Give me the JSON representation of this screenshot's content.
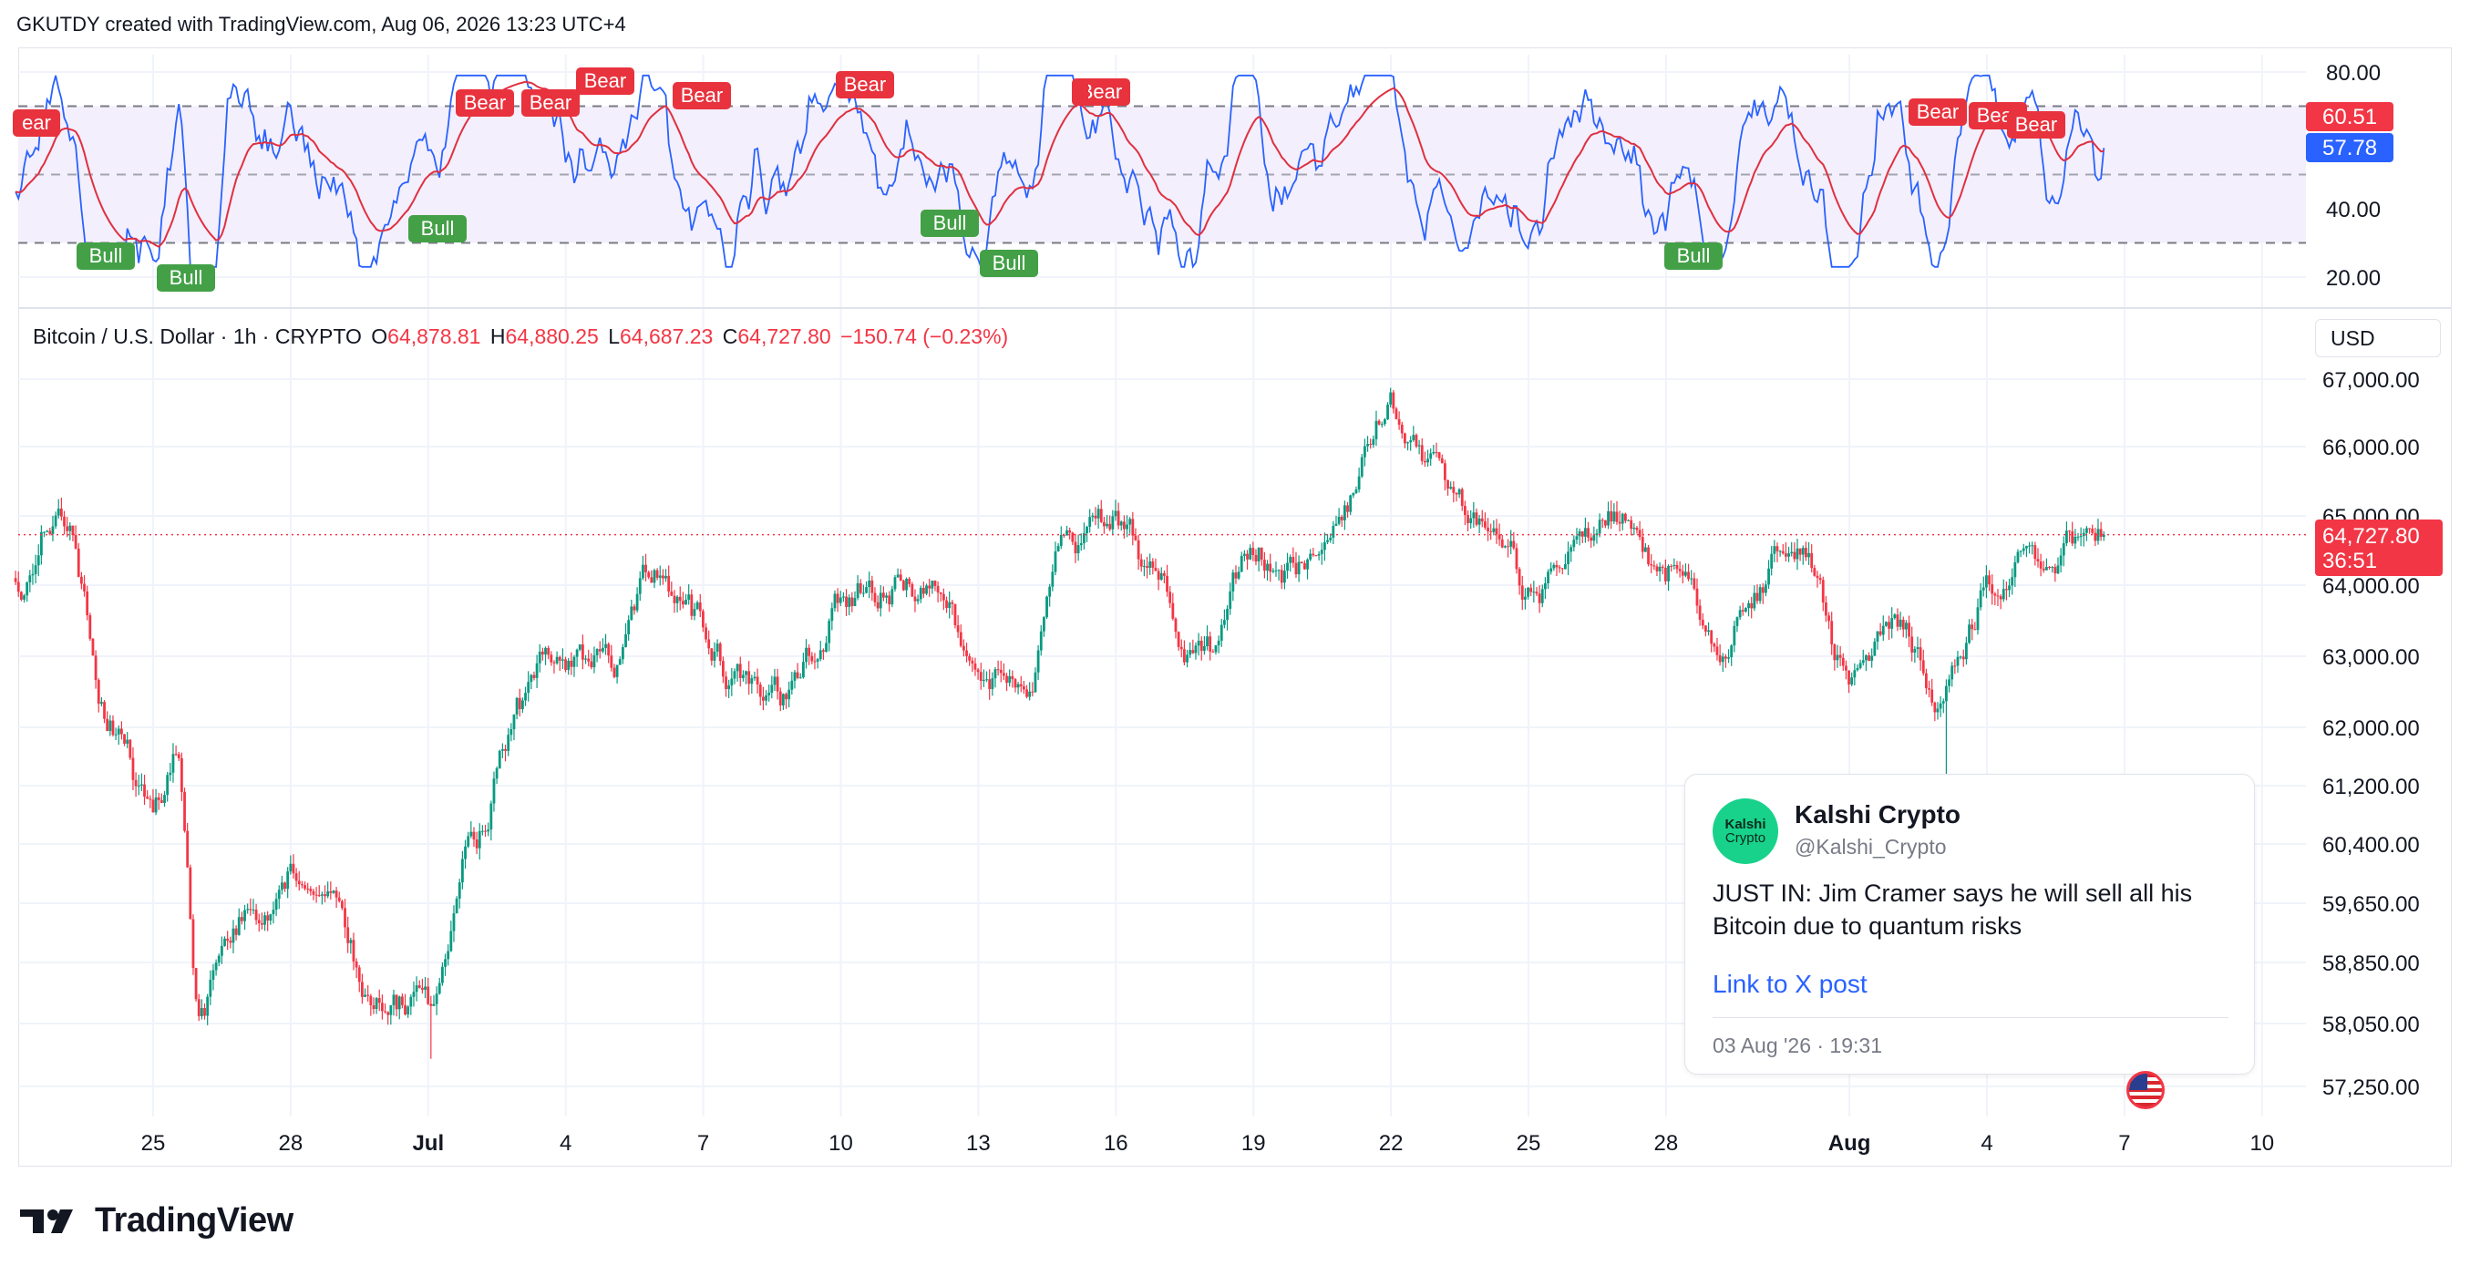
{
  "header": {
    "title": "GKUTDY created with TradingView.com, Aug 06, 2026 13:23 UTC+4"
  },
  "symbol": {
    "name": "Bitcoin / U.S. Dollar · 1h · CRYPTO",
    "o_label": "O",
    "o_value": "64,878.81",
    "h_label": "H",
    "h_value": "64,880.25",
    "l_label": "L",
    "l_value": "64,687.23",
    "c_label": "C",
    "c_value": "64,727.80",
    "change": "−150.74 (−0.23%)"
  },
  "currency_button": {
    "label": "USD"
  },
  "price_axis": {
    "ticks": [
      "67,000.00",
      "66,000.00",
      "65,000.00",
      "64,000.00",
      "63,000.00",
      "62,000.00",
      "61,200.00",
      "60,400.00",
      "59,650.00",
      "58,850.00",
      "58,050.00",
      "57,250.00"
    ],
    "last_price": "64,727.80",
    "countdown": "36:51"
  },
  "time_axis": {
    "labels": [
      {
        "text": "25",
        "bold": false
      },
      {
        "text": "28",
        "bold": false
      },
      {
        "text": "Jul",
        "bold": true
      },
      {
        "text": "4",
        "bold": false
      },
      {
        "text": "7",
        "bold": false
      },
      {
        "text": "10",
        "bold": false
      },
      {
        "text": "13",
        "bold": false
      },
      {
        "text": "16",
        "bold": false
      },
      {
        "text": "19",
        "bold": false
      },
      {
        "text": "22",
        "bold": false
      },
      {
        "text": "25",
        "bold": false
      },
      {
        "text": "28",
        "bold": false
      },
      {
        "text": "Aug",
        "bold": true
      },
      {
        "text": "4",
        "bold": false
      },
      {
        "text": "7",
        "bold": false
      },
      {
        "text": "10",
        "bold": false
      }
    ]
  },
  "rsi_panel": {
    "ticks": [
      "80.00",
      "40.00",
      "20.00"
    ],
    "rsi_value": "60.51",
    "ma_value": "57.78",
    "upper_band": 70,
    "mid_band": 50,
    "lower_band": 30,
    "bear_labels": [
      "Bear",
      "Bear",
      "Bear",
      "Bear",
      "Bear",
      "Bear",
      "Bear",
      "Bear",
      "Bear",
      "Bear"
    ],
    "bear_edge_label": "ear",
    "bull_labels": [
      "Bull",
      "Bull",
      "Bull",
      "Bull",
      "Bull",
      "Bull"
    ]
  },
  "chart_data": {
    "type": "candlestick",
    "series": [
      {
        "name": "Bitcoin / U.S. Dollar",
        "interval": "1h"
      },
      {
        "name": "RSI"
      }
    ],
    "x_range": [
      "Jun 22",
      "Aug 11"
    ],
    "y_range": [
      57000,
      67300
    ],
    "y_scale": "log",
    "rsi_range": [
      15,
      85
    ],
    "rsi_bands": [
      30,
      50,
      70
    ],
    "keypoints": [
      {
        "x": "Jun 22",
        "close": 64100
      },
      {
        "x": "Jun 23",
        "close": 65300
      },
      {
        "x": "Jun 24",
        "close": 62300
      },
      {
        "x": "Jun 25",
        "close": 60800
      },
      {
        "x": "Jun 25",
        "close": 61600
      },
      {
        "x": "Jun 26",
        "close": 58300
      },
      {
        "x": "Jun 27",
        "close": 59500
      },
      {
        "x": "Jun 28",
        "close": 60100
      },
      {
        "x": "Jun 30",
        "close": 58400
      },
      {
        "x": "Jul 1",
        "close": 58150
      },
      {
        "x": "Jul 2",
        "close": 60600
      },
      {
        "x": "Jul 3",
        "close": 62200
      },
      {
        "x": "Jul 4",
        "close": 63000
      },
      {
        "x": "Jul 5",
        "close": 62800
      },
      {
        "x": "Jul 6",
        "close": 63900
      },
      {
        "x": "Jul 7",
        "close": 63200
      },
      {
        "x": "Jul 8",
        "close": 62600
      },
      {
        "x": "Jul 9",
        "close": 62400
      },
      {
        "x": "Jul 10",
        "close": 63900
      },
      {
        "x": "Jul 11",
        "close": 64100
      },
      {
        "x": "Jul 12",
        "close": 64000
      },
      {
        "x": "Jul 13",
        "close": 62900
      },
      {
        "x": "Jul 14",
        "close": 62200
      },
      {
        "x": "Jul 15",
        "close": 64700
      },
      {
        "x": "Jul 16",
        "close": 64900
      },
      {
        "x": "Jul 17",
        "close": 63900
      },
      {
        "x": "Jul 18",
        "close": 62900
      },
      {
        "x": "Jul 19",
        "close": 64500
      },
      {
        "x": "Jul 20",
        "close": 64300
      },
      {
        "x": "Jul 21",
        "close": 65700
      },
      {
        "x": "Jul 22",
        "close": 66500
      },
      {
        "x": "Jul 23",
        "close": 65800
      },
      {
        "x": "Jul 24",
        "close": 64700
      },
      {
        "x": "Jul 25",
        "close": 64000
      },
      {
        "x": "Jul 26",
        "close": 64400
      },
      {
        "x": "Jul 27",
        "close": 65100
      },
      {
        "x": "Jul 28",
        "close": 64300
      },
      {
        "x": "Jul 29",
        "close": 63300
      },
      {
        "x": "Jul 30",
        "close": 64100
      },
      {
        "x": "Jul 31",
        "close": 64600
      },
      {
        "x": "Aug 1",
        "close": 62800
      },
      {
        "x": "Aug 2",
        "close": 63100
      },
      {
        "x": "Aug 3",
        "close": 62500
      },
      {
        "x": "Aug 4",
        "close": 63900
      },
      {
        "x": "Aug 5",
        "close": 64400
      },
      {
        "x": "Aug 6",
        "close": 64728
      }
    ]
  },
  "tweet": {
    "avatar_line1": "Kalshi",
    "avatar_line2": "Crypto",
    "name": "Kalshi Crypto",
    "handle": "@Kalshi_Crypto",
    "body": "JUST IN: Jim Cramer says he will sell all his Bitcoin due to quantum risks",
    "link": "Link to X post",
    "date": "03 Aug '26 · 19:31"
  },
  "footer": {
    "logo_text": "TradingView"
  },
  "colors": {
    "up": "#089981",
    "down": "#f23645",
    "rsi": "#2962ff",
    "rsi_ma": "#e03040",
    "band_fill": "#f3effc",
    "bull": "#43a047",
    "bear": "#e8323d"
  }
}
